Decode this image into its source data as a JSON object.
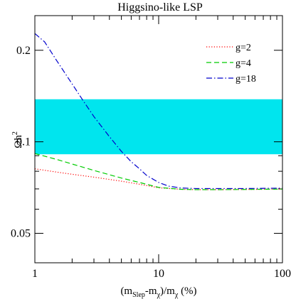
{
  "chart_data": {
    "type": "line",
    "title": "Higgsino-like LSP",
    "xlabel": {
      "open": "(m",
      "sub1": "Slep",
      "mid": "-m",
      "sub2": "χ",
      "mid2": ")/m",
      "sub3": "χ",
      "close": " (%)"
    },
    "ylabel": {
      "base": "Ωh",
      "sup": "2"
    },
    "xscale": "log",
    "yscale": "log",
    "xlim": [
      1,
      100
    ],
    "ylim": [
      0.04,
      0.26
    ],
    "xticks": [
      1,
      10,
      100
    ],
    "xtick_labels": [
      "1",
      "10",
      "100"
    ],
    "yticks": [
      0.05,
      0.1,
      0.2
    ],
    "ytick_labels": [
      "0.05",
      "0.1",
      "0.2"
    ],
    "band": {
      "y_range": [
        0.091,
        0.138
      ],
      "color": "#00e5ee"
    },
    "legend_position": "top-right",
    "series": [
      {
        "name": "g=2",
        "color": "#ff0000",
        "dash": "dotted",
        "x": [
          1,
          1.5,
          2,
          3,
          5,
          7,
          10,
          15,
          20,
          30,
          50,
          100
        ],
        "y": [
          0.0815,
          0.0795,
          0.0782,
          0.0765,
          0.0742,
          0.0725,
          0.0706,
          0.0698,
          0.0696,
          0.0696,
          0.0697,
          0.0699
        ]
      },
      {
        "name": "g=4",
        "color": "#00cc00",
        "dash": "dashed",
        "x": [
          1,
          1.5,
          2,
          3,
          5,
          7,
          10,
          15,
          20,
          30,
          50,
          100
        ],
        "y": [
          0.0915,
          0.0875,
          0.0845,
          0.0805,
          0.076,
          0.0735,
          0.0708,
          0.0698,
          0.0696,
          0.0696,
          0.0697,
          0.0699
        ]
      },
      {
        "name": "g=18",
        "color": "#0000cc",
        "dash": "dashdot",
        "x": [
          1,
          1.2,
          1.5,
          2,
          2.5,
          3,
          4,
          5,
          6,
          7,
          8,
          10,
          12,
          15,
          20,
          30,
          50,
          100
        ],
        "y": [
          0.227,
          0.213,
          0.185,
          0.155,
          0.135,
          0.121,
          0.104,
          0.093,
          0.086,
          0.0815,
          0.0775,
          0.0735,
          0.0715,
          0.0705,
          0.0702,
          0.0702,
          0.0702,
          0.0704
        ]
      }
    ]
  }
}
